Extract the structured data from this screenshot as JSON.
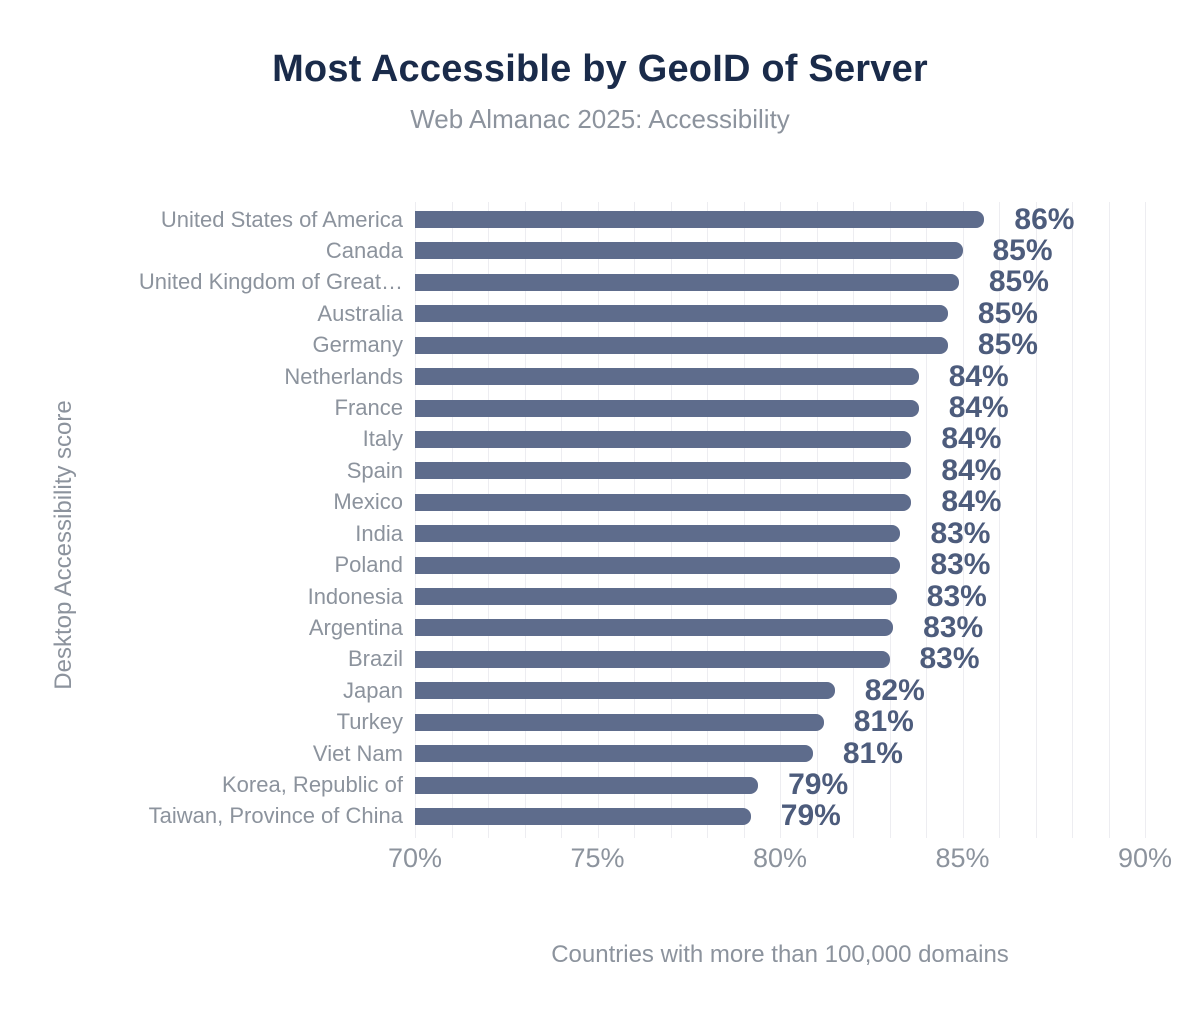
{
  "title": "Most Accessible by GeoID of Server",
  "subtitle": "Web Almanac 2025: Accessibility",
  "colors": {
    "title_text": "#1a2b4a",
    "bar_fill": "#5e6c8c",
    "value_label_text": "#4d5c7c",
    "muted_text": "#8c939d",
    "gridline": "#ededf1",
    "background": "#ffffff"
  },
  "chart_data": {
    "type": "bar",
    "orientation": "horizontal",
    "title": "Most Accessible by GeoID of Server",
    "subtitle": "Web Almanac 2025: Accessibility",
    "xlabel": "Countries with more than 100,000 domains",
    "ylabel": "Desktop Accessibility score",
    "xlim": [
      70,
      90
    ],
    "x_tick_values": [
      70,
      75,
      80,
      85,
      90
    ],
    "x_tick_labels": [
      "70%",
      "75%",
      "80%",
      "85%",
      "90%"
    ],
    "grid": "vertical minor gridlines every 1%",
    "grid_step": 1,
    "legend": "none",
    "categories": [
      "United States of America",
      "Canada",
      "United Kingdom of Great…",
      "Australia",
      "Germany",
      "Netherlands",
      "France",
      "Italy",
      "Spain",
      "Mexico",
      "India",
      "Poland",
      "Indonesia",
      "Argentina",
      "Brazil",
      "Japan",
      "Turkey",
      "Viet Nam",
      "Korea, Republic of",
      "Taiwan, Province of China"
    ],
    "values": [
      85.6,
      85.0,
      84.9,
      84.6,
      84.6,
      83.8,
      83.8,
      83.6,
      83.6,
      83.6,
      83.3,
      83.3,
      83.2,
      83.1,
      83.0,
      81.5,
      81.2,
      80.9,
      79.4,
      79.2
    ],
    "value_labels": [
      "86%",
      "85%",
      "85%",
      "85%",
      "85%",
      "84%",
      "84%",
      "84%",
      "84%",
      "84%",
      "83%",
      "83%",
      "83%",
      "83%",
      "83%",
      "82%",
      "81%",
      "81%",
      "79%",
      "79%"
    ]
  }
}
